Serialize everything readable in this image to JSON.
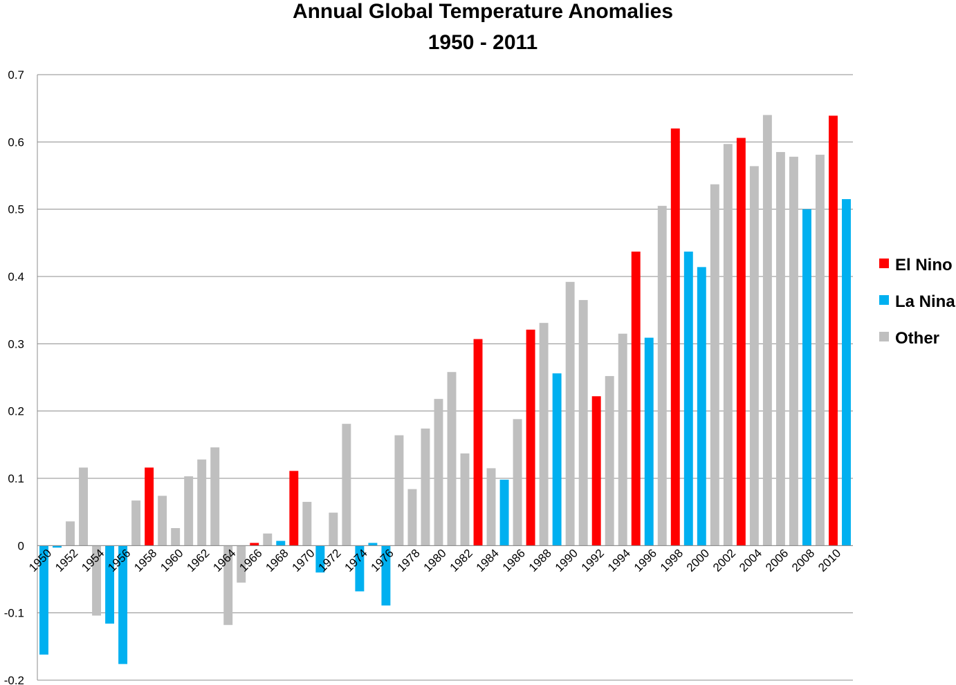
{
  "chart_data": {
    "type": "bar",
    "title": "Annual Global Temperature Anomalies",
    "subtitle": "1950 - 2011",
    "xlabel": "",
    "ylabel": "",
    "ylim": [
      -0.2,
      0.7
    ],
    "yticks": [
      "-0.2",
      "-0.1",
      "0",
      "0.1",
      "0.2",
      "0.3",
      "0.4",
      "0.5",
      "0.6",
      "0.7"
    ],
    "ytick_values": [
      -0.2,
      -0.1,
      0,
      0.1,
      0.2,
      0.3,
      0.4,
      0.5,
      0.6,
      0.7
    ],
    "grid": true,
    "legend_position": "right",
    "series": [
      {
        "name": "El Nino",
        "color": "#ff0000"
      },
      {
        "name": "La Nina",
        "color": "#00b0f0"
      },
      {
        "name": "Other",
        "color": "#bfbfbf"
      }
    ],
    "categories": [
      1950,
      1951,
      1952,
      1953,
      1954,
      1955,
      1956,
      1957,
      1958,
      1959,
      1960,
      1961,
      1962,
      1963,
      1964,
      1965,
      1966,
      1967,
      1968,
      1969,
      1970,
      1971,
      1972,
      1973,
      1974,
      1975,
      1976,
      1977,
      1978,
      1979,
      1980,
      1981,
      1982,
      1983,
      1984,
      1985,
      1986,
      1987,
      1988,
      1989,
      1990,
      1991,
      1992,
      1993,
      1994,
      1995,
      1996,
      1997,
      1998,
      1999,
      2000,
      2001,
      2002,
      2003,
      2004,
      2005,
      2006,
      2007,
      2008,
      2009,
      2010,
      2011
    ],
    "x_tick_labels": [
      "1950",
      "1952",
      "1954",
      "1956",
      "1958",
      "1960",
      "1962",
      "1964",
      "1966",
      "1968",
      "1970",
      "1972",
      "1974",
      "1976",
      "1978",
      "1980",
      "1982",
      "1984",
      "1986",
      "1988",
      "1990",
      "1992",
      "1994",
      "1996",
      "1998",
      "2000",
      "2002",
      "2004",
      "2006",
      "2008",
      "2010"
    ],
    "values": [
      -0.162,
      -0.003,
      0.036,
      0.116,
      -0.104,
      -0.116,
      -0.176,
      0.067,
      0.116,
      0.074,
      0.026,
      0.103,
      0.128,
      0.146,
      -0.118,
      -0.055,
      0.004,
      0.018,
      0.007,
      0.111,
      0.065,
      -0.04,
      0.049,
      0.181,
      -0.068,
      0.004,
      -0.089,
      0.164,
      0.084,
      0.174,
      0.218,
      0.258,
      0.137,
      0.307,
      0.115,
      0.098,
      0.188,
      0.321,
      0.331,
      0.256,
      0.392,
      0.365,
      0.222,
      0.252,
      0.315,
      0.437,
      0.309,
      0.505,
      0.62,
      0.437,
      0.414,
      0.537,
      0.597,
      0.606,
      0.564,
      0.64,
      0.585,
      0.578,
      0.5,
      0.581,
      0.639,
      0.515
    ],
    "classes": [
      "La Nina",
      "La Nina",
      "Other",
      "Other",
      "Other",
      "La Nina",
      "La Nina",
      "Other",
      "El Nino",
      "Other",
      "Other",
      "Other",
      "Other",
      "Other",
      "Other",
      "Other",
      "El Nino",
      "Other",
      "La Nina",
      "El Nino",
      "Other",
      "La Nina",
      "Other",
      "Other",
      "La Nina",
      "La Nina",
      "La Nina",
      "Other",
      "Other",
      "Other",
      "Other",
      "Other",
      "Other",
      "El Nino",
      "Other",
      "La Nina",
      "Other",
      "El Nino",
      "Other",
      "La Nina",
      "Other",
      "Other",
      "El Nino",
      "Other",
      "Other",
      "El Nino",
      "La Nina",
      "Other",
      "El Nino",
      "La Nina",
      "La Nina",
      "Other",
      "Other",
      "El Nino",
      "Other",
      "Other",
      "Other",
      "Other",
      "La Nina",
      "Other",
      "El Nino",
      "La Nina"
    ]
  }
}
